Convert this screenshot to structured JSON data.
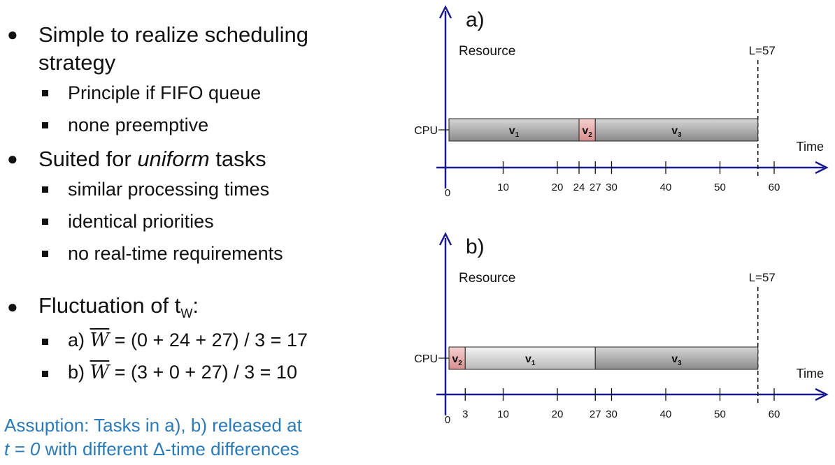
{
  "bullets": {
    "b1_line1": "Simple to realize scheduling",
    "b1_line2": "strategy",
    "b1_sub1": "Principle if FIFO queue",
    "b1_sub2": "none preemptive",
    "b2_pre": "Suited for ",
    "b2_em": "uniform",
    "b2_post": " tasks",
    "b2_sub1": "similar processing times",
    "b2_sub2": "identical priorities",
    "b2_sub3": "no real-time requirements",
    "b3_pre": "Fluctuation of t",
    "b3_subscript": "W",
    "b3_post": ":",
    "b3_a_pre": "a) ",
    "b3_b_pre": "b) ",
    "w_symbol": "W",
    "b3_a_post": " = (0 + 24 + 27) / 3 = 17",
    "b3_b_post": " = (3 + 0 + 27) / 3   = 10"
  },
  "note": {
    "line1": "Assuption: Tasks in a), b) released  at",
    "line2_em": "t = 0",
    "line2_post": " with different Δ-time differences"
  },
  "colors": {
    "axis": "#1a1a8c",
    "bar_dark": "#8a8a8a",
    "bar_light": "#e2e2e2",
    "bar_pink": "#e9a3a3",
    "note_text": "#2a7ab8"
  },
  "diagrams": [
    {
      "panel_label": "a)",
      "resource_label": "Resource",
      "lane_label": "CPU",
      "time_label": "Time",
      "deadline_label": "L=57",
      "deadline": 57,
      "origin_label": "0",
      "ticks": [
        10,
        20,
        24,
        27,
        30,
        40,
        50,
        60
      ],
      "tick_labels": [
        "10",
        "20",
        "24",
        "27",
        "30",
        "40",
        "50",
        "60"
      ],
      "tasks": [
        {
          "name": "v",
          "index": "1",
          "start": 0,
          "end": 24,
          "color": "dark"
        },
        {
          "name": "v",
          "index": "2",
          "start": 24,
          "end": 27,
          "color": "pink"
        },
        {
          "name": "v",
          "index": "3",
          "start": 27,
          "end": 57,
          "color": "dark"
        }
      ]
    },
    {
      "panel_label": "b)",
      "resource_label": "Resource",
      "lane_label": "CPU",
      "time_label": "Time",
      "deadline_label": "L=57",
      "deadline": 57,
      "origin_label": "0",
      "ticks": [
        3,
        10,
        20,
        27,
        30,
        40,
        50,
        60
      ],
      "tick_labels": [
        "3",
        "10",
        "20",
        "27",
        "30",
        "40",
        "50",
        "60"
      ],
      "tasks": [
        {
          "name": "v",
          "index": "2",
          "start": 0,
          "end": 3,
          "color": "pink"
        },
        {
          "name": "v",
          "index": "1",
          "start": 3,
          "end": 27,
          "color": "light"
        },
        {
          "name": "v",
          "index": "3",
          "start": 27,
          "end": 57,
          "color": "dark"
        }
      ]
    }
  ]
}
